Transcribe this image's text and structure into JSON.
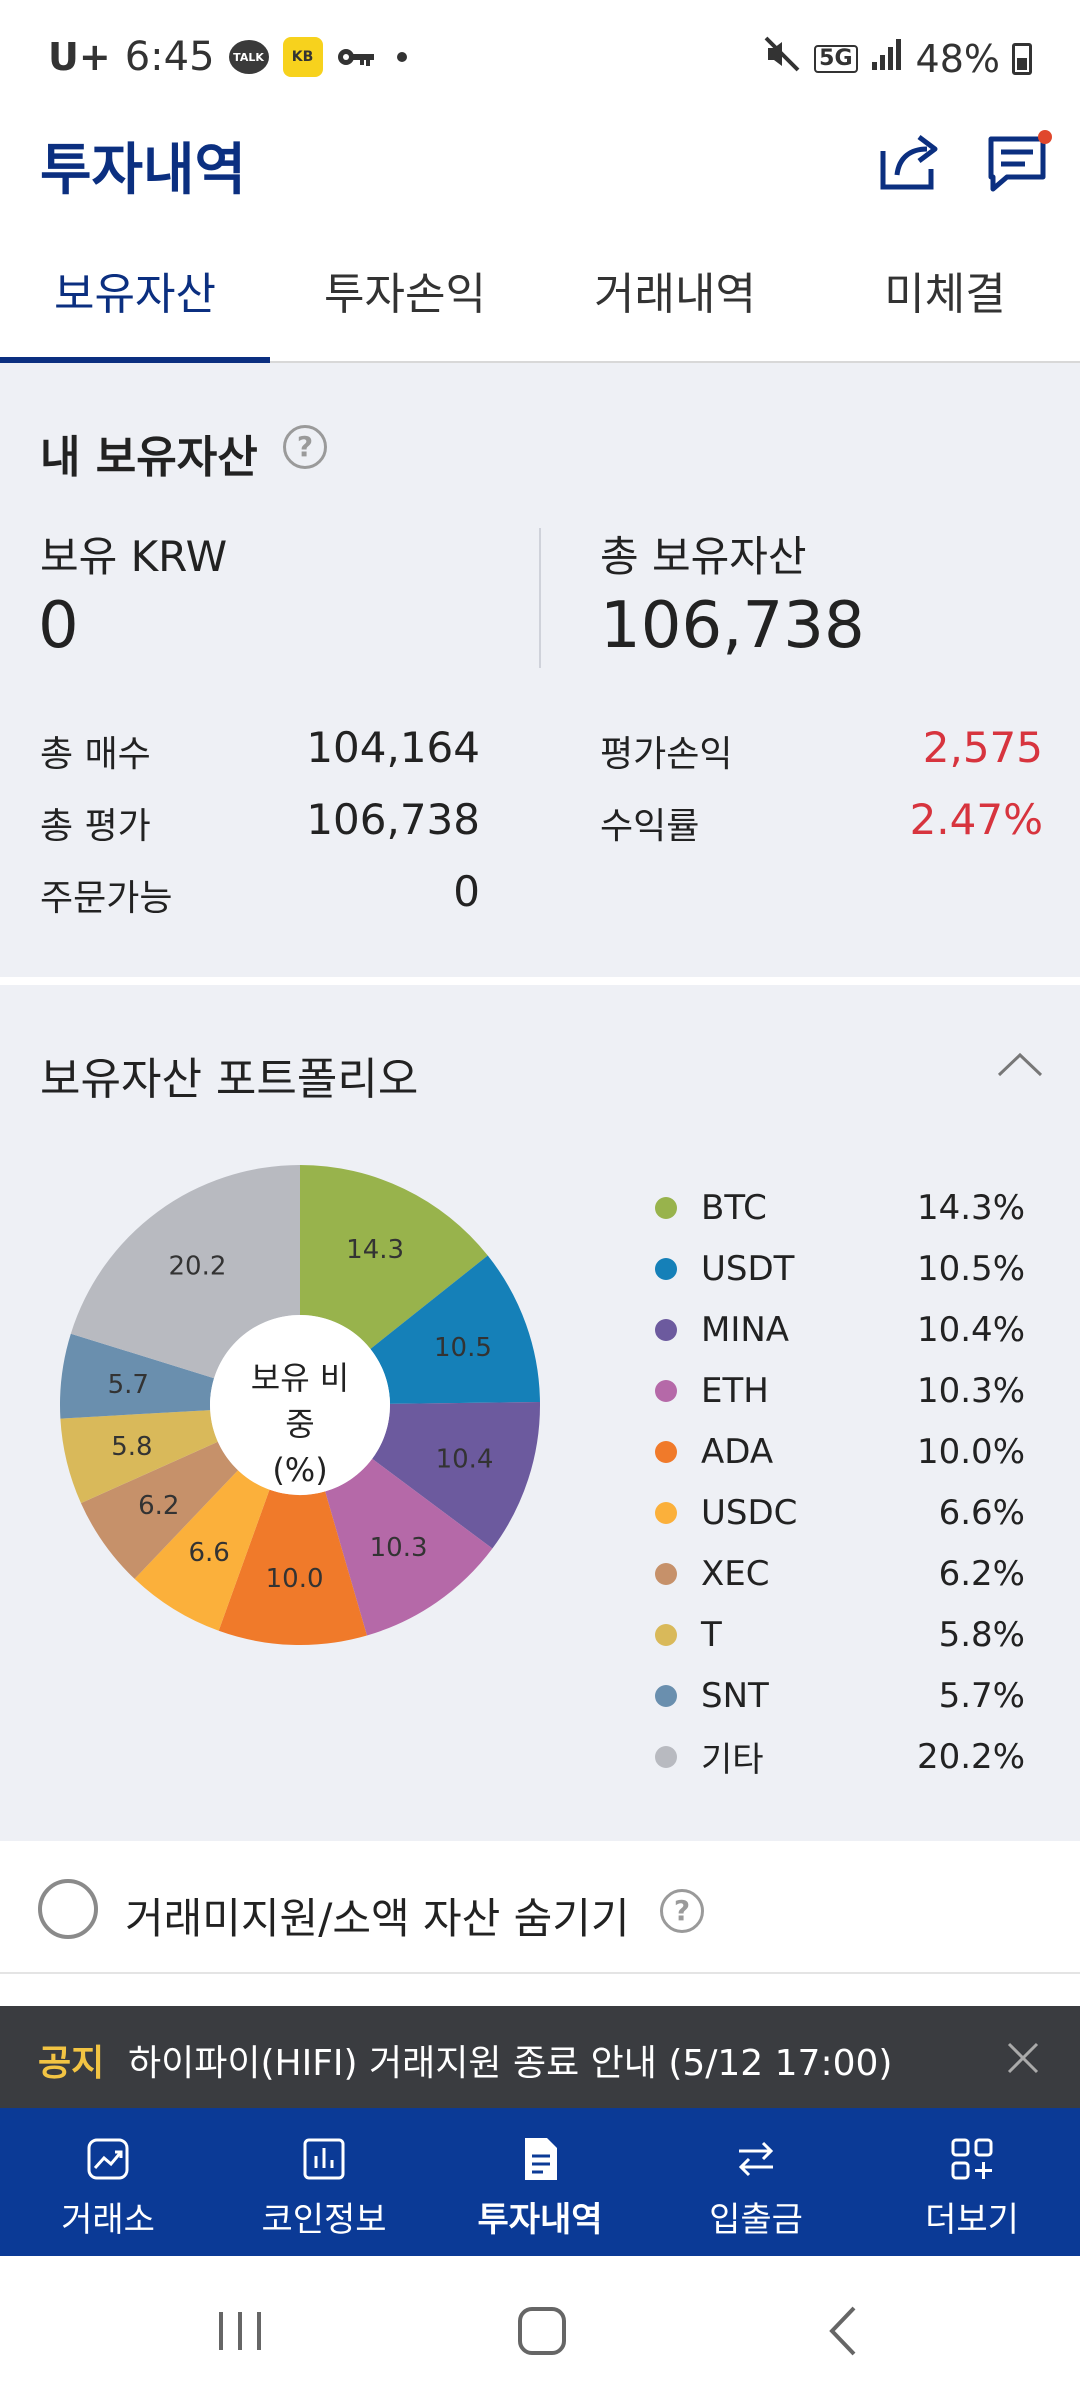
{
  "status_bar": {
    "carrier": "U+",
    "time": "6:45",
    "talk_badge": "TALK",
    "kb_badge": "KB",
    "network": "5G",
    "battery": "48%"
  },
  "header": {
    "title": "투자내역"
  },
  "tabs": [
    {
      "label": "보유자산",
      "active": true
    },
    {
      "label": "투자손익",
      "active": false
    },
    {
      "label": "거래내역",
      "active": false
    },
    {
      "label": "미체결",
      "active": false
    }
  ],
  "holdings": {
    "title": "내 보유자산",
    "krw_label": "보유 KRW",
    "krw_value": "0",
    "total_label": "총 보유자산",
    "total_value": "106,738",
    "rows_left": [
      {
        "label": "총 매수",
        "value": "104,164"
      },
      {
        "label": "총 평가",
        "value": "106,738"
      },
      {
        "label": "주문가능",
        "value": "0"
      }
    ],
    "rows_right": [
      {
        "label": "평가손익",
        "value": "2,575"
      },
      {
        "label": "수익률",
        "value": "2.47%"
      }
    ]
  },
  "portfolio": {
    "title": "보유자산 포트폴리오",
    "center_label_1": "보유 비중",
    "center_label_2": "(%)"
  },
  "chart_data": {
    "type": "pie",
    "series": [
      {
        "name": "BTC",
        "value": 14.3,
        "label": "14.3",
        "pct": "14.3%",
        "color": "#98b34c"
      },
      {
        "name": "USDT",
        "value": 10.5,
        "label": "10.5",
        "pct": "10.5%",
        "color": "#1580b8"
      },
      {
        "name": "MINA",
        "value": 10.4,
        "label": "10.4",
        "pct": "10.4%",
        "color": "#6c5a9e"
      },
      {
        "name": "ETH",
        "value": 10.3,
        "label": "10.3",
        "pct": "10.3%",
        "color": "#b569a8"
      },
      {
        "name": "ADA",
        "value": 10.0,
        "label": "10.0",
        "pct": "10.0%",
        "color": "#f07a2a"
      },
      {
        "name": "USDC",
        "value": 6.6,
        "label": "6.6",
        "pct": "6.6%",
        "color": "#fbb03b"
      },
      {
        "name": "XEC",
        "value": 6.2,
        "label": "6.2",
        "pct": "6.2%",
        "color": "#c6916a"
      },
      {
        "name": "T",
        "value": 5.8,
        "label": "5.8",
        "pct": "5.8%",
        "color": "#d9b95a"
      },
      {
        "name": "SNT",
        "value": 5.7,
        "label": "5.7",
        "pct": "5.7%",
        "color": "#6a8fae"
      },
      {
        "name": "기타",
        "value": 20.2,
        "label": "20.2",
        "pct": "20.2%",
        "color": "#b8bac0"
      }
    ]
  },
  "hide_assets": {
    "label": "거래미지원/소액 자산 숨기기"
  },
  "notice": {
    "tag": "공지",
    "text": "하이파이(HIFI) 거래지원 종료 안내 (5/12 17:00)"
  },
  "bottom_nav": [
    {
      "label": "거래소",
      "icon": "chart-icon",
      "active": false
    },
    {
      "label": "코인정보",
      "icon": "bar-chart-icon",
      "active": false
    },
    {
      "label": "투자내역",
      "icon": "document-icon",
      "active": true
    },
    {
      "label": "입출금",
      "icon": "transfer-icon",
      "active": false
    },
    {
      "label": "더보기",
      "icon": "grid-plus-icon",
      "active": false
    }
  ],
  "colors": {
    "brand": "#0b2f80",
    "nav_bg": "#0b3a96",
    "positive": "#d7343e",
    "notice_tag": "#f2c443"
  }
}
